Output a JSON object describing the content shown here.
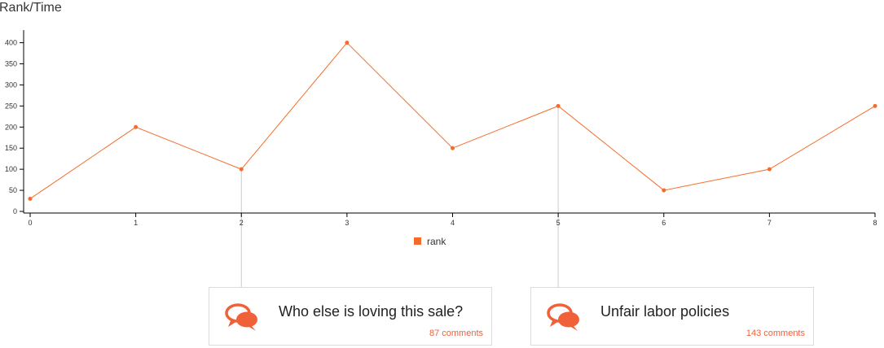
{
  "chart_data": {
    "type": "line",
    "title": "Rank/Time",
    "x": [
      0,
      1,
      2,
      3,
      4,
      5,
      6,
      7,
      8
    ],
    "series": [
      {
        "name": "rank",
        "values": [
          30,
          200,
          100,
          400,
          150,
          250,
          50,
          100,
          250
        ]
      }
    ],
    "xlim": [
      0,
      8
    ],
    "ylim": [
      0,
      430
    ],
    "yticks": [
      0,
      50,
      100,
      150,
      200,
      250,
      300,
      350,
      400
    ],
    "grid": false,
    "legend": "bottom-center",
    "colors": {
      "line": "#f46c2c",
      "legend": "#f46c2c"
    }
  },
  "annotations": [
    {
      "x": 2,
      "title": "Who else is loving this sale?",
      "comments": "87 comments",
      "icon": "speech-bubbles-icon"
    },
    {
      "x": 5,
      "title": "Unfair labor policies",
      "comments": "143 comments",
      "icon": "speech-bubbles-icon"
    }
  ],
  "colors": {
    "icon": "#f0613a",
    "comments": "#f0613a",
    "connector": "#cccccc"
  }
}
